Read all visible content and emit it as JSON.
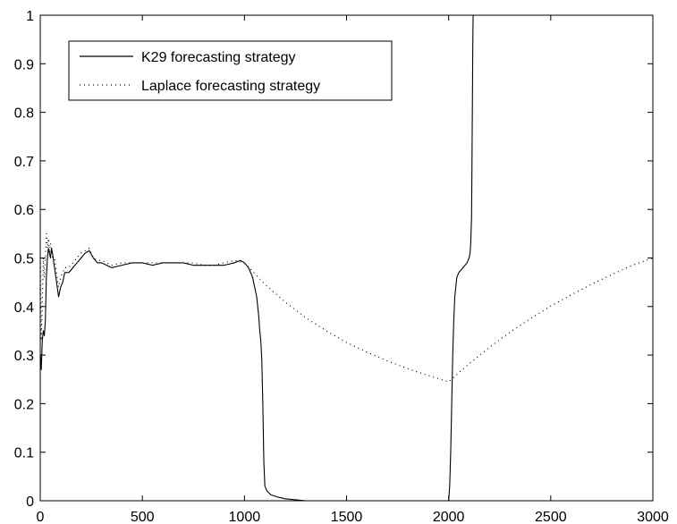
{
  "chart_data": {
    "type": "line",
    "title": "",
    "xlabel": "",
    "ylabel": "",
    "xlim": [
      0,
      3000
    ],
    "ylim": [
      0,
      1
    ],
    "xticks": [
      0,
      500,
      1000,
      1500,
      2000,
      2500,
      3000
    ],
    "yticks": [
      0,
      0.1,
      0.2,
      0.3,
      0.4,
      0.5,
      0.6,
      0.7,
      0.8,
      0.9,
      1
    ],
    "xtick_labels": [
      "0",
      "500",
      "1000",
      "1500",
      "2000",
      "2500",
      "3000"
    ],
    "ytick_labels": [
      "0",
      "0.1",
      "0.2",
      "0.3",
      "0.4",
      "0.5",
      "0.6",
      "0.7",
      "0.8",
      "0.9",
      "1"
    ],
    "grid": false,
    "legend_position": "top-left",
    "series": [
      {
        "name": "K29 forecasting strategy",
        "style": "solid",
        "color": "#000000",
        "x": [
          1,
          5,
          10,
          15,
          20,
          25,
          30,
          35,
          40,
          45,
          50,
          55,
          60,
          70,
          80,
          90,
          100,
          110,
          120,
          140,
          160,
          180,
          200,
          220,
          240,
          260,
          280,
          300,
          350,
          400,
          450,
          500,
          550,
          600,
          650,
          700,
          750,
          800,
          850,
          900,
          950,
          980,
          1000,
          1020,
          1040,
          1050,
          1060,
          1070,
          1075,
          1080,
          1085,
          1090,
          1095,
          1100,
          1110,
          1130,
          1160,
          1200,
          1250,
          1300,
          1400,
          1500,
          1600,
          1700,
          1800,
          1900,
          1990,
          2000,
          2005,
          2010,
          2015,
          2020,
          2025,
          2030,
          2040,
          2050,
          2070,
          2090,
          2100,
          2105,
          2108,
          2112,
          2114,
          2116,
          2118,
          2119,
          2120
        ],
        "y": [
          0.3,
          0.27,
          0.33,
          0.35,
          0.34,
          0.37,
          0.46,
          0.5,
          0.52,
          0.51,
          0.5,
          0.52,
          0.51,
          0.48,
          0.45,
          0.42,
          0.44,
          0.45,
          0.47,
          0.47,
          0.48,
          0.49,
          0.5,
          0.51,
          0.515,
          0.5,
          0.49,
          0.49,
          0.48,
          0.485,
          0.49,
          0.49,
          0.485,
          0.49,
          0.49,
          0.49,
          0.485,
          0.485,
          0.485,
          0.485,
          0.49,
          0.495,
          0.49,
          0.48,
          0.46,
          0.44,
          0.42,
          0.38,
          0.35,
          0.33,
          0.29,
          0.2,
          0.08,
          0.03,
          0.02,
          0.012,
          0.008,
          0.004,
          0.002,
          0.0,
          0.0,
          0.0,
          0.0,
          0.0,
          0.0,
          0.0,
          0.0,
          0.0,
          0.03,
          0.1,
          0.2,
          0.3,
          0.37,
          0.42,
          0.46,
          0.47,
          0.48,
          0.49,
          0.5,
          0.51,
          0.53,
          0.58,
          0.68,
          0.8,
          0.92,
          0.97,
          1.0
        ]
      },
      {
        "name": "Laplace forecasting strategy",
        "style": "dotted",
        "color": "#000000",
        "x": [
          1,
          5,
          10,
          15,
          20,
          25,
          30,
          35,
          40,
          45,
          50,
          55,
          60,
          70,
          80,
          90,
          100,
          110,
          120,
          140,
          160,
          180,
          200,
          220,
          240,
          260,
          280,
          300,
          350,
          400,
          450,
          500,
          550,
          600,
          650,
          700,
          750,
          800,
          850,
          900,
          950,
          1000,
          1100,
          1200,
          1300,
          1400,
          1500,
          1600,
          1700,
          1800,
          1900,
          2000,
          2100,
          2200,
          2300,
          2400,
          2500,
          2600,
          2700,
          2800,
          2900,
          3000
        ],
        "y": [
          0.5,
          0.33,
          0.4,
          0.5,
          0.46,
          0.5,
          0.55,
          0.52,
          0.54,
          0.51,
          0.53,
          0.52,
          0.5,
          0.5,
          0.47,
          0.44,
          0.46,
          0.47,
          0.48,
          0.48,
          0.49,
          0.5,
          0.51,
          0.515,
          0.52,
          0.5,
          0.495,
          0.495,
          0.485,
          0.49,
          0.49,
          0.49,
          0.49,
          0.49,
          0.49,
          0.49,
          0.49,
          0.485,
          0.485,
          0.49,
          0.495,
          0.49,
          0.446,
          0.409,
          0.377,
          0.35,
          0.326,
          0.306,
          0.288,
          0.272,
          0.258,
          0.245,
          0.282,
          0.316,
          0.347,
          0.375,
          0.401,
          0.424,
          0.446,
          0.466,
          0.485,
          0.5
        ]
      }
    ]
  }
}
